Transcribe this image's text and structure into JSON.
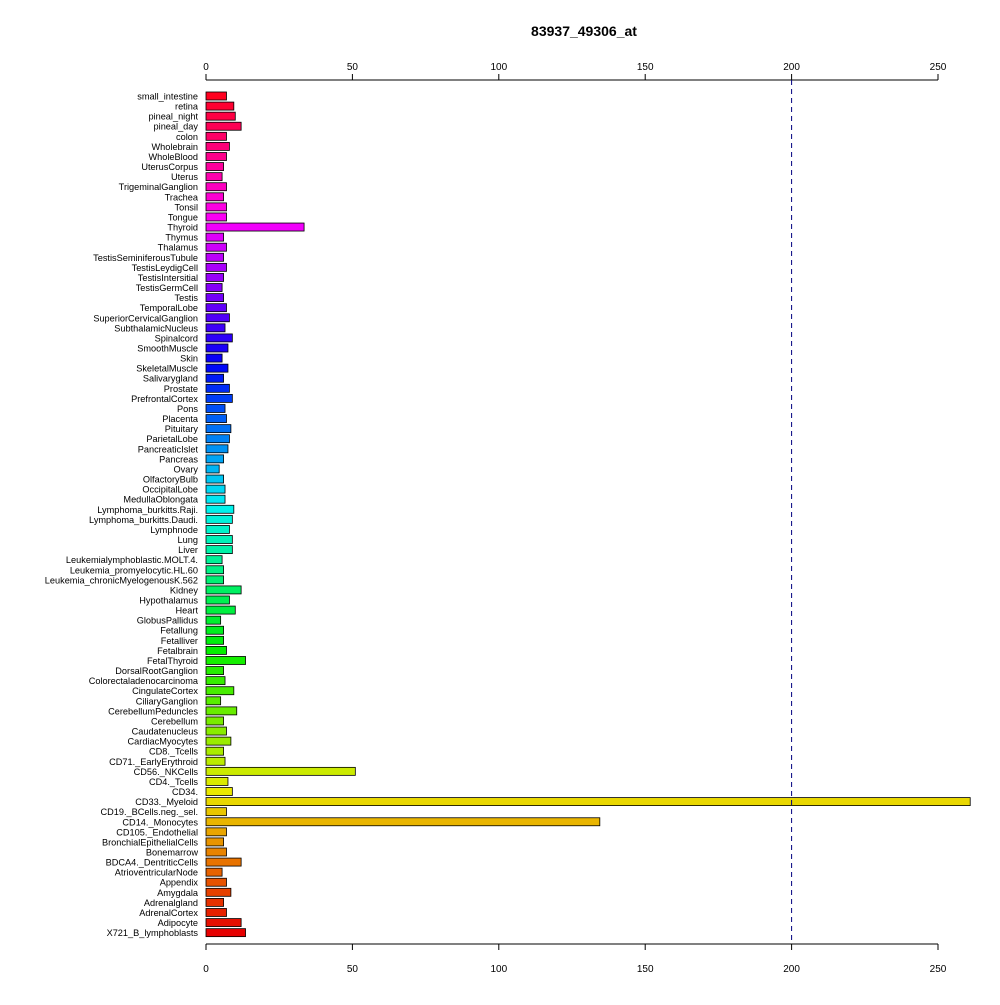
{
  "chart_data": {
    "type": "bar",
    "orientation": "horizontal",
    "title": "83937_49306_at",
    "xlabel": "",
    "ylabel": "",
    "xlim": [
      0,
      261
    ],
    "xticks": [
      0,
      50,
      100,
      150,
      200,
      250
    ],
    "tick_labels": [
      "0",
      "50",
      "100",
      "150",
      "200",
      "250"
    ],
    "reference_line": {
      "value": 200,
      "style": "dashed",
      "color": "#000080"
    },
    "axes_position": "top and bottom",
    "grid": false,
    "legend": "none",
    "categories": [
      "small_intestine",
      "retina",
      "pineal_night",
      "pineal_day",
      "colon",
      "Wholebrain",
      "WholeBlood",
      "UterusCorpus",
      "Uterus",
      "TrigeminalGanglion",
      "Trachea",
      "Tonsil",
      "Tongue",
      "Thyroid",
      "Thymus",
      "Thalamus",
      "TestisSeminiferousTubule",
      "TestisLeydigCell",
      "TestisIntersitial",
      "TestisGermCell",
      "Testis",
      "TemporalLobe",
      "SuperiorCervicalGanglion",
      "SubthalamicNucleus",
      "Spinalcord",
      "SmoothMuscle",
      "Skin",
      "SkeletalMuscle",
      "Salivarygland",
      "Prostate",
      "PrefrontalCortex",
      "Pons",
      "Placenta",
      "Pituitary",
      "ParietalLobe",
      "PancreaticIslet",
      "Pancreas",
      "Ovary",
      "OlfactoryBulb",
      "OccipitalLobe",
      "MedullaOblongata",
      "Lymphoma_burkitts.Raji.",
      "Lymphoma_burkitts.Daudi.",
      "Lymphnode",
      "Lung",
      "Liver",
      "Leukemialymphoblastic.MOLT.4.",
      "Leukemia_promyelocytic.HL.60",
      "Leukemia_chronicMyelogenousK.562",
      "Kidney",
      "Hypothalamus",
      "Heart",
      "GlobusPallidus",
      "Fetallung",
      "Fetalliver",
      "Fetalbrain",
      "FetalThyroid",
      "DorsalRootGanglion",
      "Colorectaladenocarcinoma",
      "CingulateCortex",
      "CiliaryGanglion",
      "CerebellumPeduncles",
      "Cerebellum",
      "Caudatenucleus",
      "CardiacMyocytes",
      "CD8._Tcells",
      "CD71._EarlyErythroid",
      "CD56._NKCells",
      "CD4._Tcells",
      "CD34.",
      "CD33._Myeloid",
      "CD19._BCells.neg._sel.",
      "CD14._Monocytes",
      "CD105._Endothelial",
      "BronchialEpithelialCells",
      "Bonemarrow",
      "BDCA4._DentriticCells",
      "AtrioventricularNode",
      "Appendix",
      "Amygdala",
      "Adrenalgland",
      "AdrenalCortex",
      "Adipocyte",
      "X721_B_lymphoblasts"
    ],
    "values": [
      7,
      9.5,
      10,
      12,
      7,
      8,
      7,
      6,
      5.5,
      7,
      6,
      7,
      7,
      33.5,
      6,
      7,
      6,
      7,
      6,
      5.5,
      6,
      7,
      8,
      6.5,
      9,
      7.5,
      5.5,
      7.5,
      6,
      8,
      9,
      6.5,
      7,
      8.5,
      8,
      7.5,
      6,
      4.5,
      6,
      6.5,
      6.5,
      9.5,
      9,
      8,
      9,
      9,
      5.5,
      6,
      6,
      12,
      8,
      10,
      5,
      6,
      6,
      7,
      13.5,
      6,
      6.5,
      9.5,
      5,
      10.5,
      6,
      7,
      8.5,
      6,
      6.5,
      51,
      7.5,
      9,
      261,
      7,
      134.5,
      7,
      6,
      7,
      12,
      5.5,
      7,
      8.5,
      6,
      7,
      12,
      13.5
    ]
  }
}
